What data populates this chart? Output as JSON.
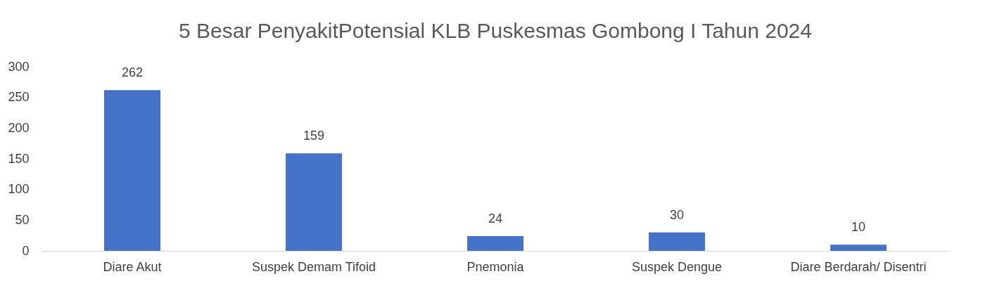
{
  "chart_data": {
    "type": "bar",
    "title": "5 Besar PenyakitPotensial KLB Puskesmas Gombong I Tahun 2024",
    "categories": [
      "Diare Akut",
      "Suspek Demam Tifoid",
      "Pnemonia",
      "Suspek Dengue",
      "Diare Berdarah/ Disentri"
    ],
    "values": [
      262,
      159,
      24,
      30,
      10
    ],
    "color": "#4472c4",
    "ylim": [
      0,
      300
    ],
    "yticks": [
      0,
      50,
      100,
      150,
      200,
      250,
      300
    ],
    "grid": false,
    "data_labels": true
  }
}
